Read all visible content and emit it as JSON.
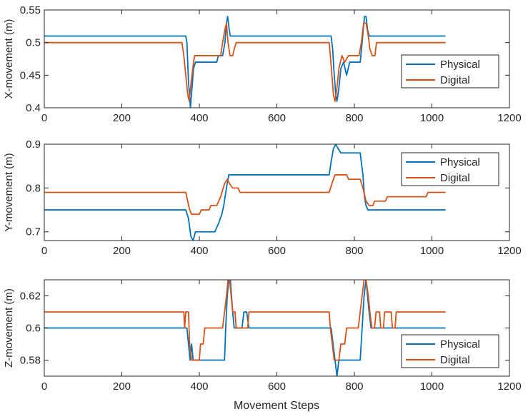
{
  "figure": {
    "xlabel": "Movement Steps"
  },
  "chart_data": [
    {
      "type": "line",
      "ylabel": "X-movement (m)",
      "xlim": [
        0,
        1200
      ],
      "ylim": [
        0.4,
        0.55
      ],
      "xticks": [
        0,
        200,
        400,
        600,
        800,
        1000,
        1200
      ],
      "yticks": [
        0.4,
        0.45,
        0.5,
        0.55
      ],
      "ytick_labels": [
        "0.4",
        "0.45",
        "0.5",
        "0.55"
      ],
      "legend_position": "right-middle",
      "series": [
        {
          "name": "Physical",
          "color": "#0072BD",
          "points": [
            [
              0,
              0.51
            ],
            [
              365,
              0.51
            ],
            [
              368,
              0.5
            ],
            [
              372,
              0.44
            ],
            [
              377,
              0.4
            ],
            [
              381,
              0.43
            ],
            [
              385,
              0.46
            ],
            [
              390,
              0.47
            ],
            [
              445,
              0.47
            ],
            [
              449,
              0.48
            ],
            [
              460,
              0.48
            ],
            [
              466,
              0.5
            ],
            [
              470,
              0.53
            ],
            [
              473,
              0.54
            ],
            [
              477,
              0.52
            ],
            [
              480,
              0.51
            ],
            [
              740,
              0.51
            ],
            [
              744,
              0.49
            ],
            [
              748,
              0.45
            ],
            [
              752,
              0.42
            ],
            [
              755,
              0.41
            ],
            [
              760,
              0.43
            ],
            [
              765,
              0.46
            ],
            [
              772,
              0.47
            ],
            [
              780,
              0.45
            ],
            [
              788,
              0.47
            ],
            [
              815,
              0.47
            ],
            [
              820,
              0.5
            ],
            [
              826,
              0.54
            ],
            [
              830,
              0.54
            ],
            [
              834,
              0.52
            ],
            [
              838,
              0.51
            ],
            [
              1035,
              0.51
            ]
          ]
        },
        {
          "name": "Digital",
          "color": "#D95319",
          "points": [
            [
              0,
              0.5
            ],
            [
              355,
              0.5
            ],
            [
              360,
              0.48
            ],
            [
              365,
              0.45
            ],
            [
              370,
              0.42
            ],
            [
              374,
              0.41
            ],
            [
              379,
              0.44
            ],
            [
              385,
              0.47
            ],
            [
              388,
              0.48
            ],
            [
              455,
              0.48
            ],
            [
              460,
              0.5
            ],
            [
              466,
              0.52
            ],
            [
              470,
              0.53
            ],
            [
              474,
              0.5
            ],
            [
              479,
              0.48
            ],
            [
              486,
              0.48
            ],
            [
              490,
              0.49
            ],
            [
              495,
              0.5
            ],
            [
              735,
              0.5
            ],
            [
              738,
              0.48
            ],
            [
              742,
              0.45
            ],
            [
              746,
              0.42
            ],
            [
              750,
              0.41
            ],
            [
              755,
              0.43
            ],
            [
              760,
              0.46
            ],
            [
              768,
              0.48
            ],
            [
              775,
              0.47
            ],
            [
              785,
              0.48
            ],
            [
              812,
              0.48
            ],
            [
              818,
              0.5
            ],
            [
              824,
              0.53
            ],
            [
              830,
              0.53
            ],
            [
              836,
              0.51
            ],
            [
              840,
              0.49
            ],
            [
              846,
              0.48
            ],
            [
              853,
              0.48
            ],
            [
              857,
              0.5
            ],
            [
              1035,
              0.5
            ]
          ]
        }
      ]
    },
    {
      "type": "line",
      "ylabel": "Y-movement (m)",
      "xlim": [
        0,
        1200
      ],
      "ylim": [
        0.68,
        0.9
      ],
      "xticks": [
        0,
        200,
        400,
        600,
        800,
        1000,
        1200
      ],
      "yticks": [
        0.7,
        0.8,
        0.9
      ],
      "ytick_labels": [
        "0.7",
        "0.8",
        "0.9"
      ],
      "legend_position": "top-right",
      "series": [
        {
          "name": "Physical",
          "color": "#0072BD",
          "points": [
            [
              0,
              0.75
            ],
            [
              365,
              0.75
            ],
            [
              372,
              0.73
            ],
            [
              378,
              0.69
            ],
            [
              384,
              0.68
            ],
            [
              390,
              0.7
            ],
            [
              440,
              0.7
            ],
            [
              450,
              0.72
            ],
            [
              458,
              0.74
            ],
            [
              463,
              0.76
            ],
            [
              470,
              0.8
            ],
            [
              476,
              0.83
            ],
            [
              735,
              0.83
            ],
            [
              740,
              0.86
            ],
            [
              746,
              0.89
            ],
            [
              752,
              0.9
            ],
            [
              758,
              0.89
            ],
            [
              765,
              0.88
            ],
            [
              815,
              0.88
            ],
            [
              822,
              0.83
            ],
            [
              826,
              0.78
            ],
            [
              830,
              0.76
            ],
            [
              835,
              0.75
            ],
            [
              1035,
              0.75
            ]
          ]
        },
        {
          "name": "Digital",
          "color": "#D95319",
          "points": [
            [
              0,
              0.79
            ],
            [
              365,
              0.79
            ],
            [
              370,
              0.77
            ],
            [
              375,
              0.75
            ],
            [
              380,
              0.74
            ],
            [
              400,
              0.74
            ],
            [
              405,
              0.75
            ],
            [
              425,
              0.75
            ],
            [
              430,
              0.76
            ],
            [
              445,
              0.76
            ],
            [
              455,
              0.78
            ],
            [
              465,
              0.81
            ],
            [
              472,
              0.82
            ],
            [
              478,
              0.81
            ],
            [
              486,
              0.8
            ],
            [
              500,
              0.8
            ],
            [
              505,
              0.79
            ],
            [
              735,
              0.79
            ],
            [
              742,
              0.81
            ],
            [
              750,
              0.83
            ],
            [
              780,
              0.83
            ],
            [
              785,
              0.82
            ],
            [
              815,
              0.82
            ],
            [
              822,
              0.8
            ],
            [
              830,
              0.77
            ],
            [
              838,
              0.76
            ],
            [
              848,
              0.76
            ],
            [
              852,
              0.77
            ],
            [
              880,
              0.77
            ],
            [
              885,
              0.78
            ],
            [
              985,
              0.78
            ],
            [
              990,
              0.79
            ],
            [
              1035,
              0.79
            ]
          ]
        }
      ]
    },
    {
      "type": "line",
      "ylabel": "Z-movement (m)",
      "xlim": [
        0,
        1200
      ],
      "ylim": [
        0.57,
        0.63
      ],
      "xticks": [
        0,
        200,
        400,
        600,
        800,
        1000,
        1200
      ],
      "yticks": [
        0.58,
        0.6,
        0.62
      ],
      "ytick_labels": [
        "0.58",
        "0.6",
        "0.62"
      ],
      "legend_position": "bottom-right",
      "series": [
        {
          "name": "Physical",
          "color": "#0072BD",
          "points": [
            [
              0,
              0.6
            ],
            [
              368,
              0.6
            ],
            [
              372,
              0.59
            ],
            [
              376,
              0.58
            ],
            [
              380,
              0.59
            ],
            [
              384,
              0.58
            ],
            [
              465,
              0.58
            ],
            [
              468,
              0.6
            ],
            [
              472,
              0.62
            ],
            [
              476,
              0.63
            ],
            [
              480,
              0.63
            ],
            [
              486,
              0.61
            ],
            [
              490,
              0.6
            ],
            [
              510,
              0.6
            ],
            [
              515,
              0.61
            ],
            [
              522,
              0.61
            ],
            [
              528,
              0.6
            ],
            [
              740,
              0.6
            ],
            [
              745,
              0.59
            ],
            [
              750,
              0.58
            ],
            [
              755,
              0.57
            ],
            [
              760,
              0.58
            ],
            [
              815,
              0.58
            ],
            [
              820,
              0.6
            ],
            [
              825,
              0.62
            ],
            [
              830,
              0.63
            ],
            [
              834,
              0.62
            ],
            [
              838,
              0.61
            ],
            [
              843,
              0.6
            ],
            [
              1035,
              0.6
            ]
          ]
        },
        {
          "name": "Digital",
          "color": "#D95319",
          "points": [
            [
              0,
              0.61
            ],
            [
              360,
              0.61
            ],
            [
              362,
              0.6
            ],
            [
              365,
              0.61
            ],
            [
              372,
              0.61
            ],
            [
              375,
              0.59
            ],
            [
              380,
              0.58
            ],
            [
              400,
              0.58
            ],
            [
              403,
              0.59
            ],
            [
              410,
              0.59
            ],
            [
              414,
              0.6
            ],
            [
              460,
              0.6
            ],
            [
              465,
              0.61
            ],
            [
              470,
              0.62
            ],
            [
              474,
              0.63
            ],
            [
              478,
              0.63
            ],
            [
              482,
              0.62
            ],
            [
              486,
              0.61
            ],
            [
              492,
              0.61
            ],
            [
              495,
              0.6
            ],
            [
              525,
              0.6
            ],
            [
              528,
              0.61
            ],
            [
              735,
              0.61
            ],
            [
              738,
              0.6
            ],
            [
              743,
              0.59
            ],
            [
              748,
              0.58
            ],
            [
              760,
              0.58
            ],
            [
              765,
              0.59
            ],
            [
              775,
              0.59
            ],
            [
              780,
              0.6
            ],
            [
              810,
              0.6
            ],
            [
              815,
              0.61
            ],
            [
              820,
              0.62
            ],
            [
              825,
              0.63
            ],
            [
              830,
              0.63
            ],
            [
              836,
              0.62
            ],
            [
              840,
              0.61
            ],
            [
              845,
              0.6
            ],
            [
              852,
              0.6
            ],
            [
              856,
              0.61
            ],
            [
              865,
              0.61
            ],
            [
              868,
              0.6
            ],
            [
              875,
              0.6
            ],
            [
              878,
              0.61
            ],
            [
              895,
              0.61
            ],
            [
              898,
              0.6
            ],
            [
              905,
              0.6
            ],
            [
              908,
              0.61
            ],
            [
              1035,
              0.61
            ]
          ]
        }
      ]
    }
  ]
}
